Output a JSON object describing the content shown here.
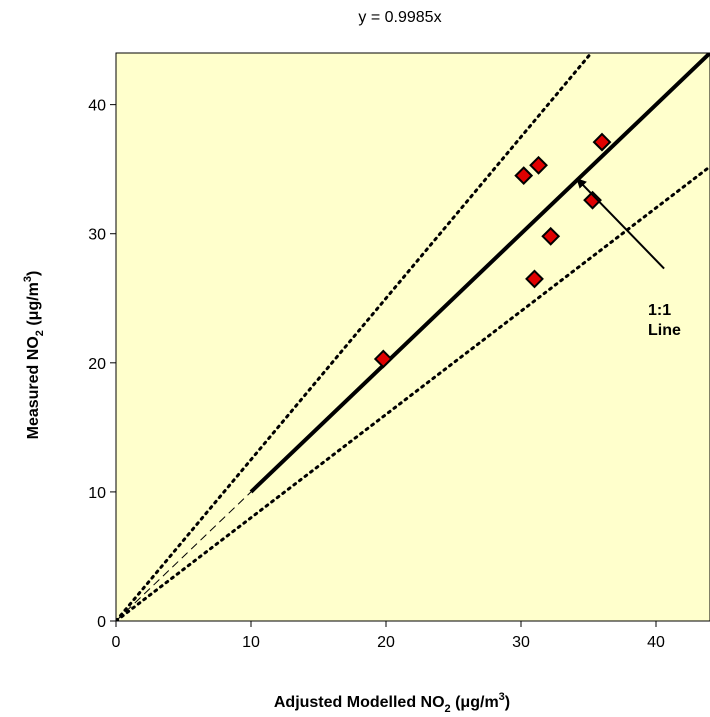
{
  "chart_data": {
    "type": "scatter",
    "title": "y = 0.9985x",
    "xlabel": {
      "prefix": "Adjusted  Modelled  NO",
      "sub": "2",
      "unit_prefix": " (μg/m",
      "sup": "3",
      "unit_suffix": ")"
    },
    "ylabel": {
      "prefix": "Measured NO",
      "sub": "2",
      "unit_prefix": " (μg/m",
      "sup": "3",
      "unit_suffix": ")"
    },
    "xlim": [
      0,
      44
    ],
    "ylim": [
      0,
      44
    ],
    "xticks": [
      0,
      10,
      20,
      30,
      40
    ],
    "yticks": [
      0,
      10,
      20,
      30,
      40
    ],
    "grid": false,
    "background": "#ffffcc",
    "marker_color": "#e00000",
    "points": [
      {
        "x": 19.8,
        "y": 20.3
      },
      {
        "x": 30.2,
        "y": 34.5
      },
      {
        "x": 31.3,
        "y": 35.3
      },
      {
        "x": 32.2,
        "y": 29.8
      },
      {
        "x": 31.0,
        "y": 26.5
      },
      {
        "x": 35.3,
        "y": 32.6
      },
      {
        "x": 36.0,
        "y": 37.1
      }
    ],
    "lines": {
      "one_to_one": {
        "slope": 1.0,
        "from_x": 10,
        "to_x": 44
      },
      "dashed_extension": {
        "slope": 1.0,
        "from_x": 0,
        "to_x": 10
      },
      "upper_dotted": {
        "slope": 1.25
      },
      "lower_dotted": {
        "slope": 0.8
      }
    },
    "annotation": {
      "lines": [
        "1:1",
        "Line"
      ],
      "arrow_to": {
        "x": 34.2,
        "y": 34.2
      },
      "arrow_from": {
        "x": 40.6,
        "y": 27.3
      }
    }
  }
}
